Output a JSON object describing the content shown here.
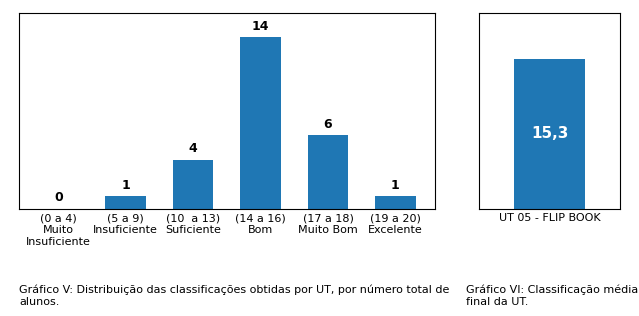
{
  "chart_data": [
    {
      "type": "bar",
      "categories": [
        "(0 a 4)\nMuito\nInsuficiente",
        "(5 a 9)\nInsuficiente",
        "(10  a 13)\nSuficiente",
        "(14 a 16)\nBom",
        "(17 a 18)\nMuito Bom",
        "(19 a 20)\nExcelente"
      ],
      "values": [
        0,
        1,
        4,
        14,
        6,
        1
      ],
      "ylim": [
        0,
        16
      ],
      "tick_labels": "x",
      "data_labels": true,
      "caption": "Gráfico V: Distribuição das classificações obtidas por UT, por número total de\nalunos."
    },
    {
      "type": "bar",
      "categories": [
        "UT 05 - FLIP BOOK"
      ],
      "values": [
        15.3
      ],
      "value_labels": [
        "15,3"
      ],
      "ylim": [
        0,
        20
      ],
      "tick_labels": "x",
      "data_labels": true,
      "caption": "Gráfico VI: Classificação média\nfinal da UT."
    }
  ]
}
